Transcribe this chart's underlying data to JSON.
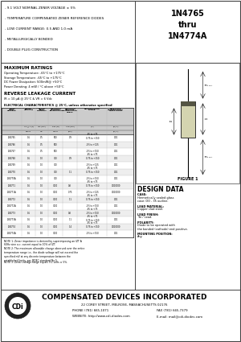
{
  "bullets": [
    "- 9.1 VOLT NOMINAL ZENER VOLTAGE ± 5%",
    "- TEMPERATURE COMPENSATED ZENER REFERENCE DIODES",
    "- LOW CURRENT RANGE: 0.5 AND 1.0 mA",
    "- METALLURGICALLY BONDED",
    "- DOUBLE PLUG CONSTRUCTION"
  ],
  "title_part": "1N4765\nthru\n1N4774A",
  "max_ratings_title": "MAXIMUM RATINGS",
  "max_ratings": [
    "Operating Temperature: -65°C to +175°C",
    "Storage Temperature: -65°C to +175°C",
    "DC Power Dissipation: 500mW@ +50°C",
    "Power Derating: 4 mW / °C above +50°C"
  ],
  "reverse_title": "REVERSE LEAKAGE CURRENT",
  "reverse_text": "IR = 10 μA @ 25°C & VR = 6 Vdc",
  "elec_char_title": "ELECTRICAL CHARACTERISTICS @ 25°C, unless otherwise specified",
  "col_headers": [
    "JEDEC\nTYPE\nNUMBER",
    "ZENER\nVOLTAGE",
    "ZENER\nTEST\nCURRENT",
    "MAXIMUM\nDYNAMIC\nIMPEDANCE",
    "MAXIMUM\nVOLTAGE\nTEMPERATURE\nCOEFF.",
    "TEMPERATURE\nRANGE",
    "EFFECTIVE\nTEMPERATURE\nCOEFFICIENT"
  ],
  "col_subheaders": [
    "",
    "VZ @ T (V)",
    "IZT (mA)",
    "ZZT (Ω)",
    "ΔVZ (mV)",
    "(°C)",
    "(%/°C)"
  ],
  "col_units": [
    "",
    "VOLTS",
    "mA",
    "OHMS",
    "(mV)",
    "",
    "(%/°C)"
  ],
  "table_data": [
    [
      "1N4765",
      "9.1",
      "0.5",
      "500",
      "0.9",
      "-65 to +75\n0.75 to +150",
      "0.01"
    ],
    [
      "1N4766",
      "9.1",
      "0.5",
      "500",
      "",
      "-0.5 to +125",
      "0.01"
    ],
    [
      "1N4767",
      "9.1",
      "0.5",
      "500",
      "",
      "-0.5 to +150",
      "0.01"
    ],
    [
      "1N4768",
      "9.1",
      "1.0",
      "300",
      "0.9",
      "-65 to +75\n0.75 to +150",
      "0.01"
    ],
    [
      "1N4769",
      "9.1",
      "1.0",
      "300",
      "",
      "-0.5 to +125",
      "0.01"
    ],
    [
      "1N4770",
      "9.1",
      "1.0",
      "300",
      "1.1",
      "-65 to +75\n0.75 to +150",
      "0.01"
    ],
    [
      "1N4770A",
      "9.1",
      "1.0",
      "300",
      "",
      "-0.5 to +150",
      "0.01"
    ],
    [
      "1N4771",
      "9.1",
      "1.0",
      "3000",
      "0.8",
      "-65 to +75\n0.75 to +150",
      "0.010000"
    ],
    [
      "1N4771A",
      "9.1",
      "1.0",
      "3000",
      "0.75",
      "-0.5 to +125",
      "0.010000"
    ],
    [
      "1N4772",
      "9.1",
      "1.0",
      "3000",
      "1.1",
      "-65 to +75\n0.75 to +150",
      "0.01"
    ],
    [
      "1N4772A",
      "9.1",
      "1.0",
      "3000",
      "",
      "-0.5 to +150",
      "0.01"
    ],
    [
      "1N4773",
      "9.1",
      "1.0",
      "3000",
      "0.8",
      "-65 to +75\n-0.5 to +150",
      "0.010000"
    ],
    [
      "1N4773A",
      "9.1",
      "1.0",
      "3000",
      "1.1",
      "-65 to +75\n0.75 to +150",
      "0.01"
    ],
    [
      "1N4774",
      "9.1",
      "1.0",
      "3000",
      "1.4",
      "-65 to +75\n0.75 to +150",
      "0.010000"
    ],
    [
      "1N4774A",
      "9.1",
      "1.0",
      "3000",
      "",
      "-0.5 to +150",
      "0.01"
    ]
  ],
  "note1": "NOTE 1: Zener impedance is derived by superimposing an IZT A 60Hz sine a.c. current equal to 10% of IZT.",
  "note2": "NOTE 2: The maximum allowable change observed over the entire temperature range i.e., the diode voltage will not exceed the specified mV at any discrete temperature between the established limits, per JEDEC standard No.5.",
  "note3": "NOTE 3: Zener voltage range equals 9.1 volts ± 5%.",
  "figure_label": "FIGURE 1",
  "design_data_title": "DESIGN DATA",
  "design_items": [
    [
      "CASE: ",
      "Hermetically sealed glass\ncase: DO - 35 outline."
    ],
    [
      "LEAD MATERIAL: ",
      "Copper clad steel."
    ],
    [
      "LEAD FINISH: ",
      "Tin / Lead."
    ],
    [
      "POLARITY: ",
      "Diode to be operated with\nthe banded (cathode) end positive."
    ],
    [
      "MOUNTING POSITION: ",
      "Any."
    ]
  ],
  "company": "COMPENSATED DEVICES INCORPORATED",
  "address": "22 COREY STREET, MELROSE, MASSACHUSETTS 02176",
  "phone": "PHONE (781) 665-1071",
  "fax": "FAX (781) 665-7379",
  "website": "WEBSITE: http://www.cdi-diodes.com",
  "email": "E-mail: mail@cdi-diodes.com"
}
